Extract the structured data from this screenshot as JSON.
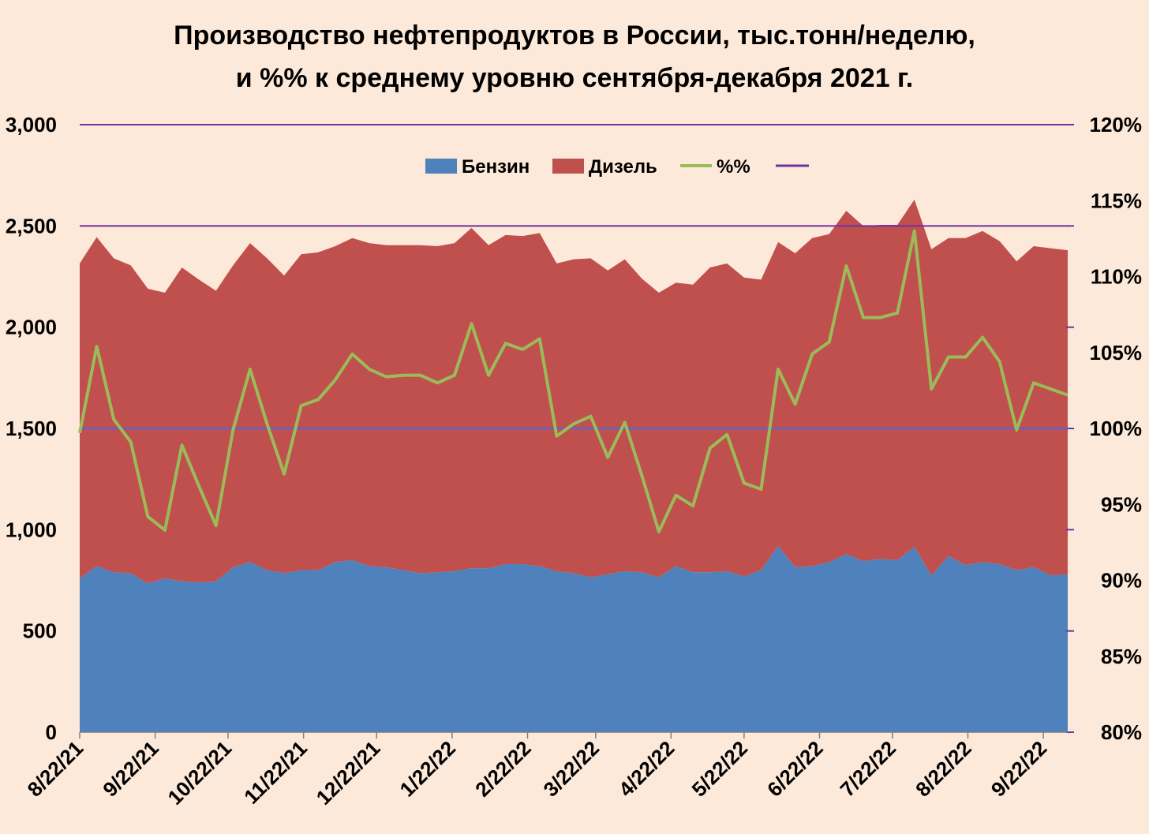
{
  "title": {
    "line1": "Производство нефтепродуктов в России, тыс.тонн/неделю,",
    "line2": "и %% к среднему уровню сентября-декабря 2021 г."
  },
  "chart_data": {
    "type": "area",
    "title": "Производство нефтепродуктов в России, тыс.тонн/неделю, и %% к среднему уровню сентября-декабря 2021 г.",
    "xlabel": "",
    "ylabel": "",
    "y_left": {
      "range": [
        0,
        3000
      ],
      "ticks": [
        "0",
        "500",
        "1,000",
        "1,500",
        "2,000",
        "2,500",
        "3,000"
      ]
    },
    "y_right": {
      "range": [
        80,
        120
      ],
      "ticks": [
        "80%",
        "85%",
        "90%",
        "95%",
        "100%",
        "105%",
        "110%",
        "115%",
        "120%"
      ]
    },
    "x_tick_labels": [
      "8/22/21",
      "9/22/21",
      "10/22/21",
      "11/22/21",
      "12/22/21",
      "1/22/22",
      "2/22/22",
      "3/22/22",
      "4/22/22",
      "5/22/22",
      "6/22/22",
      "7/22/22",
      "8/22/22",
      "9/22/22"
    ],
    "x_tick_weeks": [
      0,
      4.43,
      8.71,
      13.14,
      17.43,
      21.86,
      26.29,
      30.29,
      34.71,
      39.0,
      43.43,
      47.71,
      52.14,
      56.57
    ],
    "n_weeks": 58,
    "legend": {
      "position": "top-center",
      "entries": [
        "Бензин",
        "Дизель",
        "%%",
        ""
      ]
    },
    "reference_lines_left_axis": [
      1500,
      2500,
      3000
    ],
    "series": [
      {
        "name": "Бензин",
        "kind": "stacked-area",
        "color": "#4f81bd",
        "values": [
          760,
          820,
          790,
          785,
          735,
          760,
          745,
          740,
          745,
          815,
          840,
          800,
          785,
          800,
          800,
          840,
          850,
          820,
          815,
          800,
          785,
          790,
          795,
          810,
          810,
          830,
          830,
          820,
          795,
          785,
          765,
          780,
          795,
          790,
          765,
          820,
          790,
          790,
          795,
          770,
          800,
          920,
          815,
          820,
          840,
          880,
          845,
          855,
          850,
          915,
          775,
          870,
          825,
          840,
          830,
          800,
          815,
          775,
          780
        ]
      },
      {
        "name": "Дизель",
        "kind": "stacked-area",
        "color": "#c0504d",
        "values": [
          1555,
          1625,
          1550,
          1520,
          1455,
          1410,
          1550,
          1495,
          1435,
          1490,
          1575,
          1540,
          1470,
          1560,
          1570,
          1560,
          1590,
          1595,
          1590,
          1605,
          1620,
          1610,
          1620,
          1680,
          1595,
          1625,
          1620,
          1645,
          1520,
          1550,
          1575,
          1500,
          1540,
          1450,
          1405,
          1400,
          1420,
          1505,
          1520,
          1475,
          1435,
          1500,
          1550,
          1620,
          1620,
          1695,
          1655,
          1650,
          1655,
          1715,
          1610,
          1570,
          1615,
          1635,
          1595,
          1525,
          1585,
          1615,
          1600
        ]
      },
      {
        "name": "%%",
        "kind": "line",
        "axis": "right",
        "color": "#9bbb59",
        "values": [
          99.7,
          105.4,
          100.6,
          99.1,
          94.2,
          93.3,
          98.9,
          96.2,
          93.6,
          99.9,
          103.9,
          100.3,
          97.0,
          101.5,
          101.9,
          103.2,
          104.9,
          103.9,
          103.4,
          103.5,
          103.5,
          103.0,
          103.5,
          106.9,
          103.5,
          105.6,
          105.2,
          105.9,
          99.5,
          100.3,
          100.8,
          98.1,
          100.4,
          96.9,
          93.2,
          95.6,
          94.9,
          98.7,
          99.6,
          96.4,
          96.0,
          103.9,
          101.6,
          104.9,
          105.7,
          110.7,
          107.3,
          107.3,
          107.6,
          113.0,
          102.6,
          104.7,
          104.7,
          106.0,
          104.4,
          99.9,
          103.0,
          102.6,
          102.2
        ]
      },
      {
        "name": "",
        "kind": "reference-line",
        "axis": "left",
        "color": "#7030a0",
        "values": [
          1500
        ]
      }
    ]
  },
  "colors": {
    "background": "#fde9d9",
    "benzin": "#4f81bd",
    "dizel": "#c0504d",
    "percent_line": "#9bbb59",
    "reference_line": "#7030a0",
    "reference_line_100": "#6f5fb5"
  }
}
